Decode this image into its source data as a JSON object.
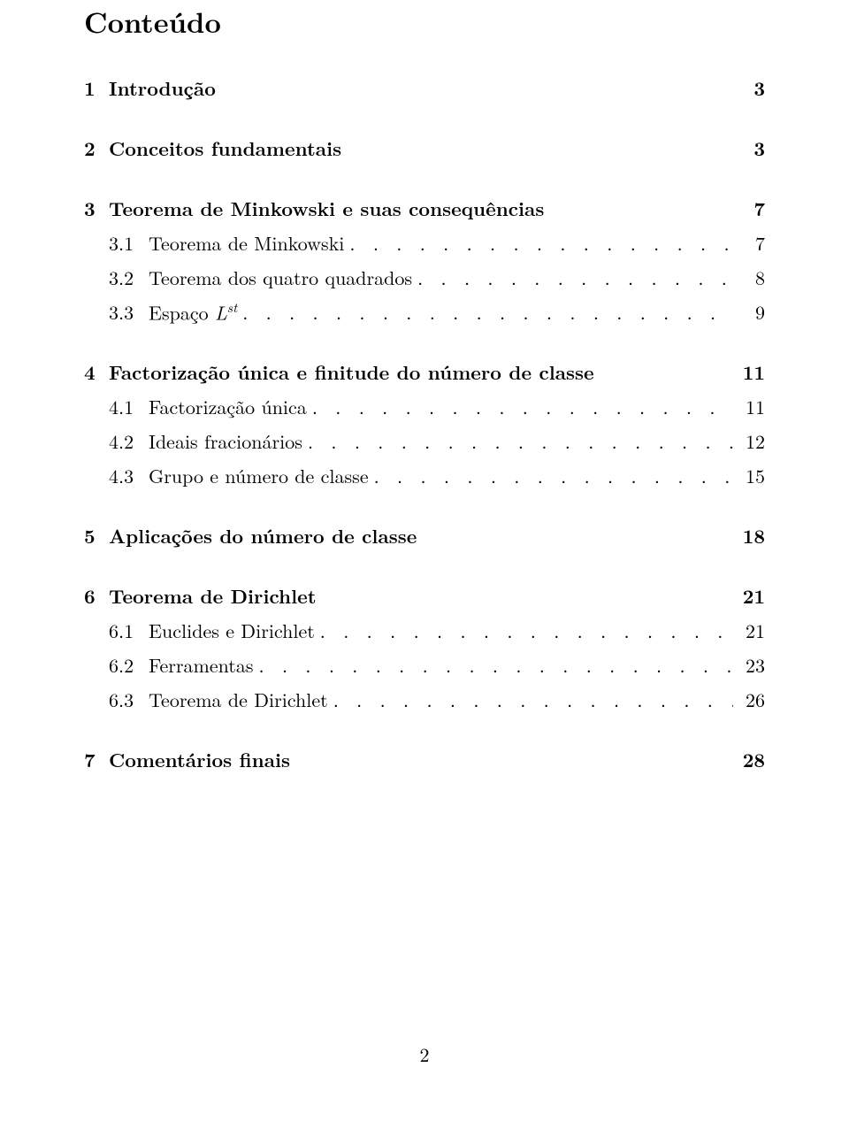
{
  "title": "Conteúdo",
  "entries": [
    {
      "type": "section",
      "num": "1",
      "label": "Introdução",
      "page": "3"
    },
    {
      "type": "section",
      "num": "2",
      "label": "Conceitos fundamentais",
      "page": "3"
    },
    {
      "type": "section",
      "num": "3",
      "label": "Teorema de Minkowski e suas consequências",
      "page": "7"
    },
    {
      "type": "sub",
      "num": "3.1",
      "label": "Teorema de Minkowski",
      "page": "7"
    },
    {
      "type": "sub",
      "num": "3.2",
      "label": "Teorema dos quatro quadrados",
      "page": "8"
    },
    {
      "type": "sub",
      "num": "3.3",
      "label_html": "Espaço <i>L</i><sup class=\"st\">st</sup>",
      "page": "9"
    },
    {
      "type": "section",
      "num": "4",
      "label": "Factorização única e finitude do número de classe",
      "page": "11"
    },
    {
      "type": "sub",
      "num": "4.1",
      "label": "Factorização única",
      "page": "11"
    },
    {
      "type": "sub",
      "num": "4.2",
      "label": "Ideais fracionários",
      "page": "12"
    },
    {
      "type": "sub",
      "num": "4.3",
      "label": "Grupo e número de classe",
      "page": "15"
    },
    {
      "type": "section",
      "num": "5",
      "label": "Aplicações do número de classe",
      "page": "18"
    },
    {
      "type": "section",
      "num": "6",
      "label": "Teorema de Dirichlet",
      "page": "21"
    },
    {
      "type": "sub",
      "num": "6.1",
      "label": "Euclides e Dirichlet",
      "page": "21"
    },
    {
      "type": "sub",
      "num": "6.2",
      "label": "Ferramentas",
      "page": "23"
    },
    {
      "type": "sub",
      "num": "6.3",
      "label": "Teorema de Dirichlet",
      "page": "26"
    },
    {
      "type": "section",
      "num": "7",
      "label": "Comentários finais",
      "page": "28"
    }
  ],
  "footer_page": "2",
  "dot_fill": ". . . . . . . . . . . . . . . . . . . . . . . . . . . . . . . . . . . . . . . . . . . . . . . . . . . . . . . . . . . . . . . . . . . . . . . . . . . . . . . ."
}
